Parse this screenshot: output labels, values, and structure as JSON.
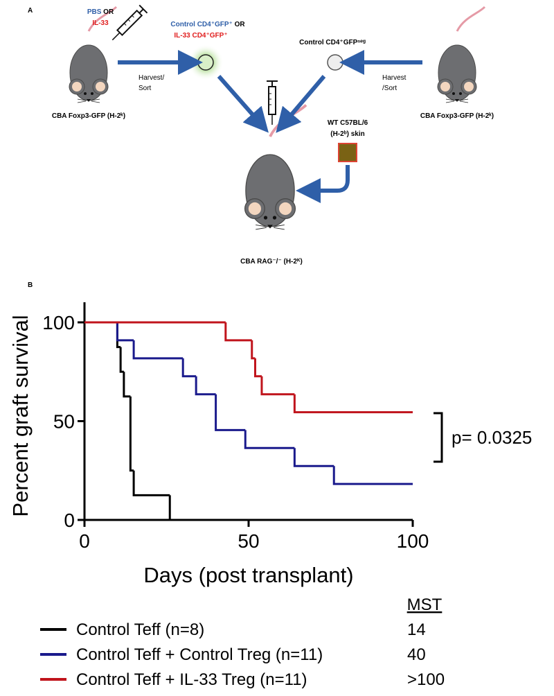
{
  "panel_a": {
    "label": "A",
    "pbs": "PBS",
    "or_1": "OR",
    "il33": "IL-33",
    "control_gfp_pos": "Control CD4⁺GFP⁺",
    "or_2": "OR",
    "il33_gfp_pos": "IL-33 CD4⁺GFP⁺",
    "control_gfp_neg": "Control CD4⁺GFPⁿᵉᵍ",
    "harvest_left_1": "Harvest/",
    "harvest_left_2": "Sort",
    "harvest_right_1": "Harvest",
    "harvest_right_2": "/Sort",
    "donor_left": "CBA Foxp3-GFP (H-2ᵏ)",
    "donor_right": "CBA Foxp3-GFP (H-2ᵏ)",
    "skin_1": "WT C57BL/6",
    "skin_2": "(H-2ᵇ) skin",
    "recipient": "CBA RAG⁻/⁻ (H-2ᴷ)"
  },
  "chart_data": {
    "type": "survival",
    "panel_label": "B",
    "x_label": "Days (post transplant)",
    "y_label": "Percent graft survival",
    "xlim": [
      0,
      100
    ],
    "ylim": [
      0,
      100
    ],
    "xticks": [
      0,
      50,
      100
    ],
    "yticks": [
      0,
      50,
      100
    ],
    "mst_header": "MST",
    "series": [
      {
        "name": "Control Teff (n=8)",
        "color": "#000000",
        "mst": 14,
        "x": [
          0,
          10,
          11,
          12,
          14,
          15,
          26
        ],
        "values": [
          100,
          87.5,
          75,
          62.5,
          25,
          12.5,
          0
        ]
      },
      {
        "name": "Control Teff + Control Treg (n=11)",
        "color": "#1a1a8c",
        "mst": 40,
        "x": [
          0,
          10,
          15,
          30,
          34,
          40,
          49,
          64,
          76,
          100
        ],
        "values": [
          100,
          90.9,
          81.8,
          72.7,
          63.6,
          45.5,
          36.4,
          27.3,
          18.2,
          18.2
        ]
      },
      {
        "name": "Control Teff + IL-33 Treg (n=11)",
        "color": "#c0141c",
        "mst": ">100",
        "x": [
          0,
          43,
          51,
          52,
          54,
          64,
          100
        ],
        "values": [
          100,
          90.9,
          81.8,
          72.7,
          63.6,
          54.5,
          54.5
        ]
      }
    ],
    "annotation": "p= 0.0325"
  }
}
